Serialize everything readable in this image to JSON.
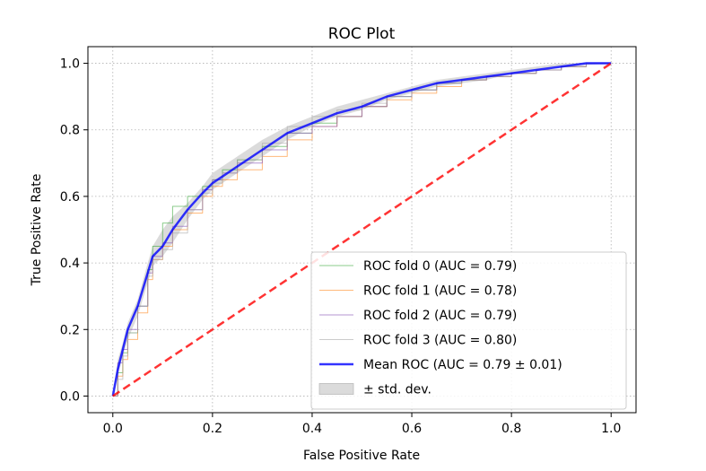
{
  "chart_data": {
    "type": "line",
    "title": "ROC Plot",
    "xlabel": "False Positive Rate",
    "ylabel": "True Positive Rate",
    "xlim": [
      -0.05,
      1.05
    ],
    "ylim": [
      -0.05,
      1.05
    ],
    "xticks": [
      "0.0",
      "0.2",
      "0.4",
      "0.6",
      "0.8",
      "1.0"
    ],
    "yticks": [
      "0.0",
      "0.2",
      "0.4",
      "0.6",
      "0.8",
      "1.0"
    ],
    "grid": true,
    "grid_style": "dotted",
    "legend_position": "lower-right",
    "chance_line": {
      "x": [
        0,
        1
      ],
      "y": [
        0,
        1
      ],
      "color": "#ff0000",
      "style": "dashed"
    },
    "std_band": {
      "name": "± std. dev.",
      "color": "#cccccc",
      "x": [
        0.0,
        0.01,
        0.02,
        0.03,
        0.05,
        0.07,
        0.08,
        0.1,
        0.12,
        0.15,
        0.18,
        0.2,
        0.25,
        0.3,
        0.35,
        0.4,
        0.45,
        0.5,
        0.55,
        0.6,
        0.65,
        0.7,
        0.75,
        0.8,
        0.85,
        0.9,
        0.95,
        1.0
      ],
      "lower": [
        0.0,
        0.06,
        0.12,
        0.17,
        0.24,
        0.34,
        0.39,
        0.42,
        0.46,
        0.53,
        0.59,
        0.62,
        0.67,
        0.72,
        0.77,
        0.81,
        0.84,
        0.86,
        0.89,
        0.91,
        0.93,
        0.94,
        0.95,
        0.97,
        0.98,
        0.99,
        0.995,
        1.0
      ],
      "upper": [
        0.0,
        0.11,
        0.16,
        0.22,
        0.29,
        0.4,
        0.45,
        0.5,
        0.54,
        0.58,
        0.63,
        0.67,
        0.72,
        0.77,
        0.81,
        0.84,
        0.87,
        0.89,
        0.91,
        0.93,
        0.95,
        0.96,
        0.97,
        0.98,
        0.99,
        1.0,
        1.0,
        1.0
      ]
    },
    "series": [
      {
        "name": "ROC fold 0 (AUC = 0.79)",
        "color": "#2ca02c",
        "width": 1,
        "opacity": 0.55,
        "x": [
          0.0,
          0.01,
          0.02,
          0.03,
          0.05,
          0.07,
          0.08,
          0.1,
          0.12,
          0.15,
          0.18,
          0.2,
          0.22,
          0.25,
          0.3,
          0.35,
          0.4,
          0.45,
          0.5,
          0.55,
          0.6,
          0.65,
          0.7,
          0.75,
          0.8,
          0.85,
          0.9,
          0.95,
          1.0
        ],
        "y": [
          0.0,
          0.07,
          0.13,
          0.19,
          0.27,
          0.38,
          0.45,
          0.52,
          0.57,
          0.6,
          0.63,
          0.65,
          0.68,
          0.71,
          0.75,
          0.79,
          0.82,
          0.84,
          0.87,
          0.9,
          0.92,
          0.94,
          0.95,
          0.96,
          0.97,
          0.98,
          0.99,
          1.0,
          1.0
        ]
      },
      {
        "name": "ROC fold 1 (AUC = 0.78)",
        "color": "#ff7f0e",
        "width": 1,
        "opacity": 0.55,
        "x": [
          0.0,
          0.01,
          0.02,
          0.03,
          0.05,
          0.07,
          0.08,
          0.1,
          0.12,
          0.15,
          0.18,
          0.2,
          0.22,
          0.25,
          0.3,
          0.35,
          0.4,
          0.45,
          0.5,
          0.55,
          0.6,
          0.65,
          0.7,
          0.75,
          0.8,
          0.85,
          0.9,
          0.95,
          1.0
        ],
        "y": [
          0.0,
          0.06,
          0.11,
          0.17,
          0.25,
          0.35,
          0.41,
          0.45,
          0.5,
          0.55,
          0.6,
          0.63,
          0.65,
          0.68,
          0.72,
          0.77,
          0.81,
          0.84,
          0.87,
          0.89,
          0.91,
          0.93,
          0.95,
          0.96,
          0.97,
          0.98,
          0.99,
          1.0,
          1.0
        ]
      },
      {
        "name": "ROC fold 2 (AUC = 0.79)",
        "color": "#9467bd",
        "width": 1,
        "opacity": 0.7,
        "x": [
          0.0,
          0.01,
          0.02,
          0.03,
          0.05,
          0.07,
          0.08,
          0.1,
          0.12,
          0.15,
          0.18,
          0.2,
          0.22,
          0.25,
          0.3,
          0.35,
          0.4,
          0.45,
          0.5,
          0.55,
          0.6,
          0.65,
          0.7,
          0.75,
          0.8,
          0.85,
          0.9,
          0.95,
          1.0
        ],
        "y": [
          0.0,
          0.1,
          0.14,
          0.2,
          0.27,
          0.37,
          0.42,
          0.46,
          0.51,
          0.56,
          0.62,
          0.65,
          0.67,
          0.7,
          0.74,
          0.79,
          0.81,
          0.84,
          0.87,
          0.9,
          0.92,
          0.94,
          0.95,
          0.96,
          0.97,
          0.98,
          0.99,
          1.0,
          1.0
        ]
      },
      {
        "name": "ROC fold 3 (AUC = 0.80)",
        "color": "#a9a9a9",
        "width": 1,
        "opacity": 0.6,
        "x": [
          0.0,
          0.01,
          0.02,
          0.03,
          0.05,
          0.07,
          0.08,
          0.1,
          0.12,
          0.15,
          0.18,
          0.2,
          0.22,
          0.25,
          0.3,
          0.35,
          0.4,
          0.45,
          0.5,
          0.55,
          0.6,
          0.65,
          0.7,
          0.75,
          0.8,
          0.85,
          0.9,
          0.95,
          1.0
        ],
        "y": [
          0.0,
          0.05,
          0.12,
          0.19,
          0.27,
          0.36,
          0.41,
          0.44,
          0.49,
          0.56,
          0.61,
          0.64,
          0.67,
          0.71,
          0.76,
          0.81,
          0.84,
          0.86,
          0.88,
          0.9,
          0.92,
          0.94,
          0.95,
          0.96,
          0.97,
          0.98,
          0.99,
          1.0,
          1.0
        ]
      },
      {
        "name": "Mean ROC (AUC = 0.79 ± 0.01)",
        "color": "#0000ff",
        "width": 2.5,
        "opacity": 0.8,
        "x": [
          0.0,
          0.01,
          0.02,
          0.03,
          0.05,
          0.07,
          0.08,
          0.1,
          0.12,
          0.15,
          0.18,
          0.2,
          0.22,
          0.25,
          0.3,
          0.35,
          0.4,
          0.45,
          0.5,
          0.55,
          0.6,
          0.65,
          0.7,
          0.75,
          0.8,
          0.85,
          0.9,
          0.95,
          1.0
        ],
        "y": [
          0.0,
          0.08,
          0.14,
          0.2,
          0.27,
          0.37,
          0.42,
          0.45,
          0.5,
          0.56,
          0.61,
          0.64,
          0.66,
          0.69,
          0.74,
          0.79,
          0.82,
          0.85,
          0.87,
          0.9,
          0.92,
          0.94,
          0.95,
          0.96,
          0.97,
          0.98,
          0.99,
          1.0,
          1.0
        ]
      }
    ]
  }
}
